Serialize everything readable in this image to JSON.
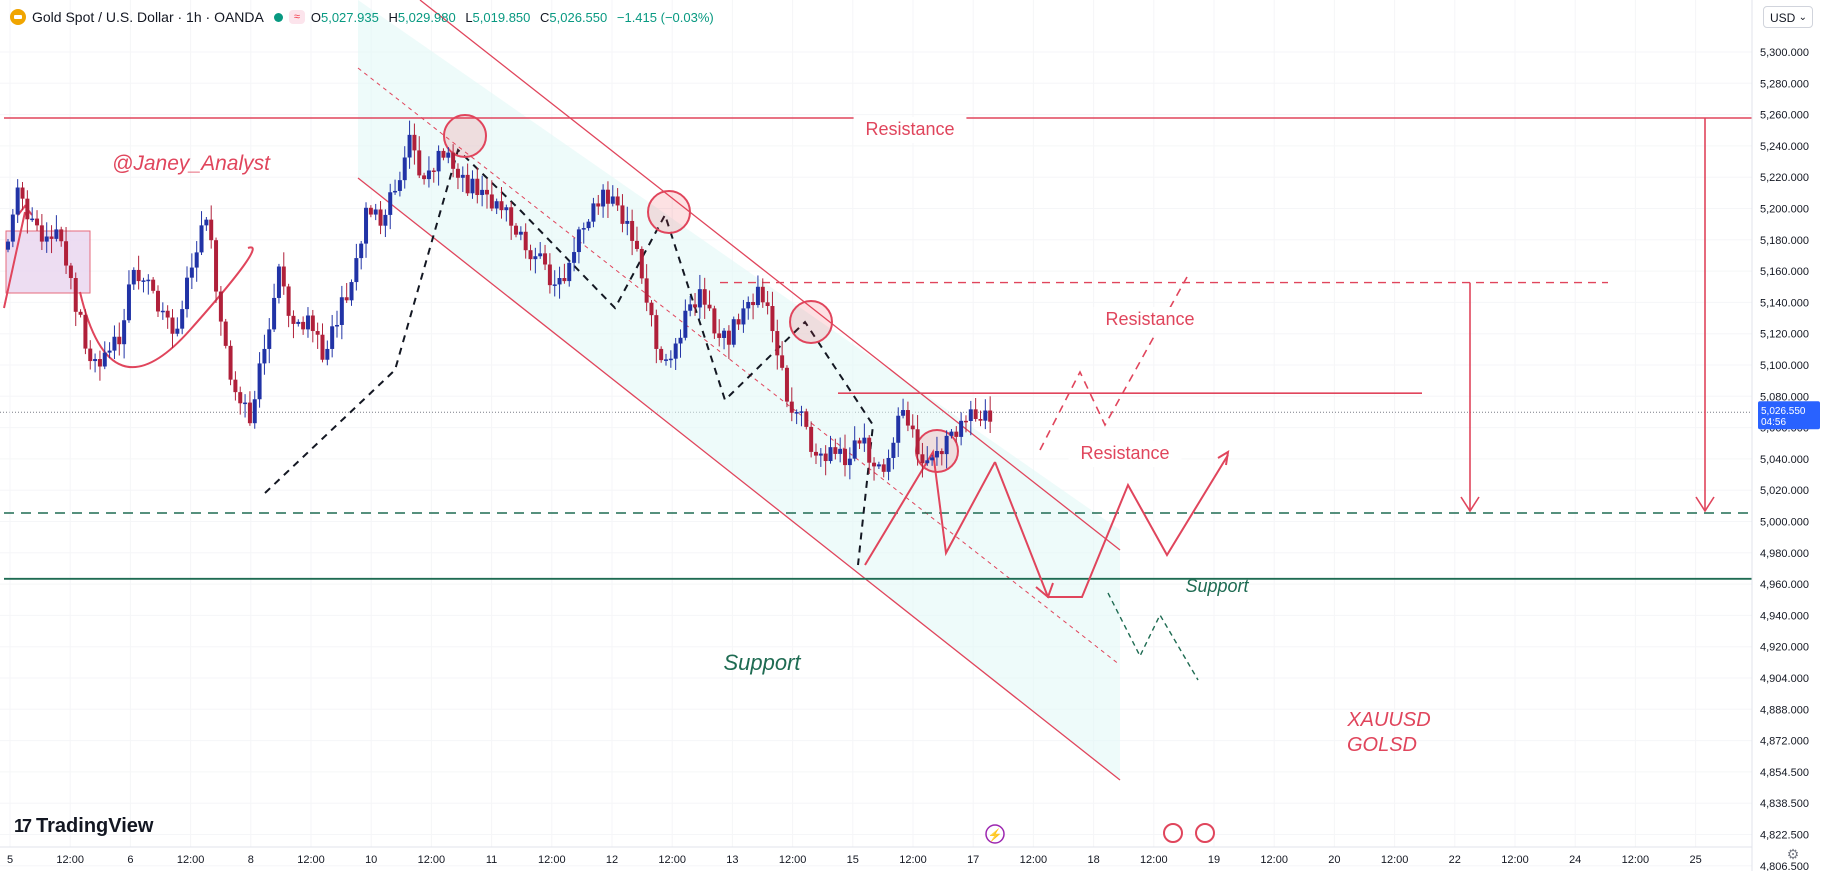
{
  "header": {
    "title": "Gold Spot / U.S. Dollar · 1h · OANDA",
    "open_label": "O",
    "open": "5,027.935",
    "high_label": "H",
    "high": "5,029.980",
    "low_label": "L",
    "low": "5,019.850",
    "close_label": "C",
    "close": "5,026.550",
    "change": "−1.415 (−0.03%)"
  },
  "currency_selector": "USD",
  "watermark": "@Janey_Analyst",
  "brand": "TradingView",
  "colors": {
    "up": "#089981",
    "down": "#f23645",
    "candle_up": "#2133a6",
    "candle_down": "#b0203a",
    "annotation": "#e0455c",
    "support": "#1e6b52",
    "channel_fill": "#e0f7f5",
    "box_fill": "#e9d5f0"
  },
  "chart_data": {
    "type": "candlestick",
    "symbol": "XAUUSD",
    "timeframe": "1h",
    "current_price": "5,026.550",
    "countdown": "04:56",
    "ylim": [
      4800,
      5310
    ],
    "y_tick_labels": [
      "5,300.000",
      "5,280.000",
      "5,260.000",
      "5,240.000",
      "5,220.000",
      "5,200.000",
      "5,180.000",
      "5,160.000",
      "5,140.000",
      "5,120.000",
      "5,100.000",
      "5,080.000",
      "5,060.000",
      "5,040.000",
      "5,020.000",
      "5,000.000",
      "4,980.000",
      "4,960.000",
      "4,940.000",
      "4,920.000",
      "4,904.000",
      "4,888.000",
      "4,872.000",
      "4,854.500",
      "4,838.500",
      "4,822.500",
      "4,806.500"
    ],
    "x_tick_labels": [
      "5",
      "12:00",
      "6",
      "12:00",
      "8",
      "12:00",
      "10",
      "12:00",
      "11",
      "12:00",
      "12",
      "12:00",
      "13",
      "12:00",
      "15",
      "12:00",
      "17",
      "12:00",
      "18",
      "12:00",
      "19",
      "12:00",
      "20",
      "12:00",
      "22",
      "12:00",
      "24",
      "12:00",
      "25"
    ],
    "price_path": [
      5150,
      5190,
      5170,
      5160,
      5160,
      5110,
      5060,
      5070,
      5080,
      5140,
      5120,
      5100,
      5090,
      5140,
      5180,
      5090,
      5040,
      5020,
      5080,
      5130,
      5090,
      5100,
      5070,
      5100,
      5120,
      5180,
      5170,
      5200,
      5230,
      5200,
      5225,
      5215,
      5200,
      5190,
      5185,
      5170,
      5155,
      5140,
      5120,
      5140,
      5170,
      5190,
      5185,
      5170,
      5130,
      5080,
      5060,
      5100,
      5120,
      5090,
      5085,
      5100,
      5120,
      5090,
      5040,
      5020,
      4990,
      5000,
      4990,
      5010,
      4980,
      4990,
      5030,
      5000,
      4985,
      5005,
      5020,
      5025,
      5026.55
    ],
    "annotations": {
      "resistance_upper": {
        "label": "Resistance",
        "price": 5250
      },
      "resistance_mid": {
        "label": "Resistance",
        "price": 5125
      },
      "resistance_lower": {
        "label": "Resistance",
        "price": 5041
      },
      "support_upper": {
        "label": "Support",
        "price": 4950
      },
      "support_lower": {
        "label": "Support",
        "price": 4900
      },
      "tags": [
        "XAUUSD",
        "GOLSD"
      ]
    }
  }
}
